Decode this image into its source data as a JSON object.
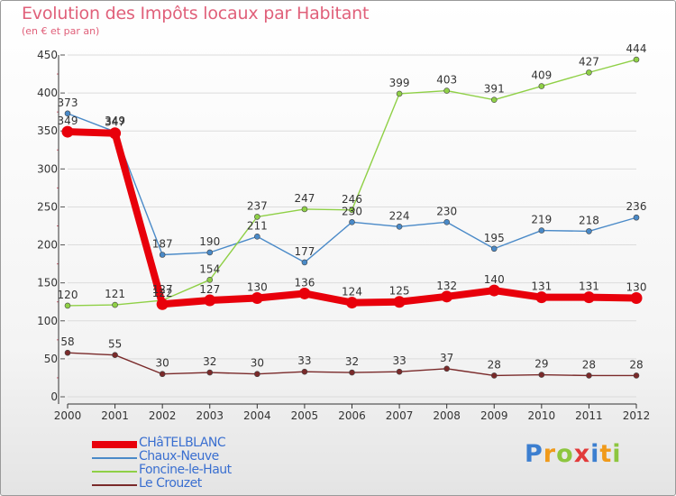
{
  "title": "Evolution des Impôts locaux par Habitant",
  "subtitle": "(en € et par an)",
  "logo": {
    "text": "Proxiti",
    "letters": [
      {
        "ch": "P",
        "color": "#3c7fd0"
      },
      {
        "ch": "r",
        "color": "#f09a1a"
      },
      {
        "ch": "o",
        "color": "#8dc63f"
      },
      {
        "ch": "x",
        "color": "#e23a3a"
      },
      {
        "ch": "i",
        "color": "#3c7fd0"
      },
      {
        "ch": "t",
        "color": "#f09a1a"
      },
      {
        "ch": "i",
        "color": "#8dc63f"
      }
    ]
  },
  "chart_data": {
    "type": "line",
    "title": "Evolution des Impôts locaux par Habitant",
    "subtitle": "(en € et par an)",
    "x": [
      2000,
      2001,
      2002,
      2003,
      2004,
      2005,
      2006,
      2007,
      2008,
      2009,
      2010,
      2011,
      2012
    ],
    "x_tick_labels": [
      "2000",
      "2001",
      "2002",
      "2003",
      "2004",
      "2005",
      "2006",
      "2007",
      "2008",
      "2009",
      "2010",
      "2011",
      "2012"
    ],
    "ylim": [
      0,
      450
    ],
    "y_ticks": [
      0,
      50,
      100,
      150,
      200,
      250,
      300,
      350,
      400,
      450
    ],
    "grid": "horizontal",
    "legend_position": "bottom-left",
    "series": [
      {
        "name": "CHâTELBLANC",
        "color": "#e8000b",
        "values": [
          349,
          347,
          122,
          127,
          130,
          136,
          124,
          125,
          132,
          140,
          131,
          131,
          130
        ],
        "labels": [
          "349",
          "347",
          "122",
          "127",
          "130",
          "136",
          "124",
          "125",
          "132",
          "140",
          "131",
          "131",
          "130"
        ],
        "bold": true
      },
      {
        "name": "Chaux-Neuve",
        "color": "#4a8ac8",
        "values": [
          373,
          349,
          187,
          190,
          211,
          177,
          230,
          224,
          230,
          195,
          219,
          218,
          236
        ],
        "labels": [
          "373",
          "349",
          "187",
          "190",
          "211",
          "177",
          "230",
          "224",
          "230",
          "195",
          "219",
          "218",
          "236"
        ],
        "bold": false
      },
      {
        "name": "Foncine-le-Haut",
        "color": "#8fd046",
        "values": [
          120,
          121,
          127,
          154,
          237,
          247,
          246,
          399,
          403,
          391,
          409,
          427,
          444
        ],
        "labels": [
          "120",
          "121",
          "127",
          "154",
          "237",
          "247",
          "246",
          "399",
          "403",
          "391",
          "409",
          "427",
          "444"
        ],
        "bold": false
      },
      {
        "name": "Le Crouzet",
        "color": "#7a2a2a",
        "values": [
          58,
          55,
          30,
          32,
          30,
          33,
          32,
          33,
          37,
          28,
          29,
          28,
          28
        ],
        "labels": [
          "58",
          "55",
          "30",
          "32",
          "30",
          "33",
          "32",
          "33",
          "37",
          "28",
          "29",
          "28",
          "28"
        ],
        "bold": false
      }
    ]
  }
}
